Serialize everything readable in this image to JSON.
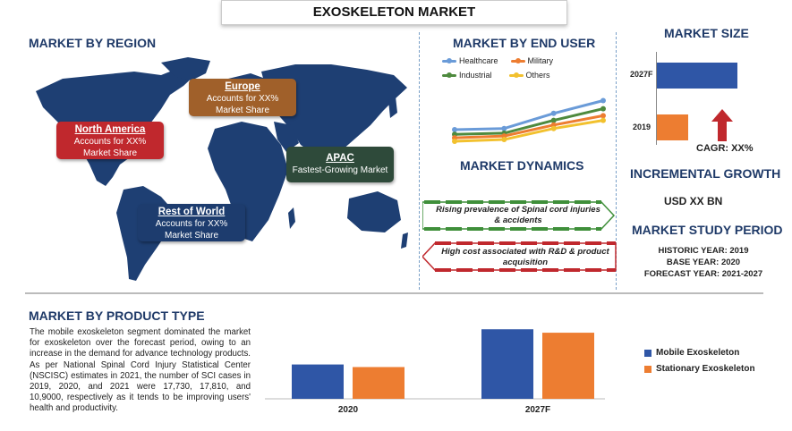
{
  "title": "EXOSKELETON MARKET",
  "region": {
    "heading": "MARKET BY REGION",
    "callouts": [
      {
        "name": "North America",
        "line1": "Accounts for XX%",
        "line2": "Market Share",
        "color": "#c0282d"
      },
      {
        "name": "Europe",
        "line1": "Accounts for XX%",
        "line2": "Market Share",
        "color": "#a0602a"
      },
      {
        "name": "APAC",
        "line1": "Fastest-Growing Market",
        "line2": "",
        "color": "#2e4a3a"
      },
      {
        "name": "Rest of World",
        "line1": "Accounts for XX%",
        "line2": "Market Share",
        "color": "#1d3c6e"
      }
    ]
  },
  "end_user": {
    "heading": "MARKET BY END USER",
    "legend": [
      {
        "label": "Healthcare",
        "color": "#6a9bd8"
      },
      {
        "label": "Military",
        "color": "#ed7d31"
      },
      {
        "label": "Industrial",
        "color": "#4e8a3e"
      },
      {
        "label": "Others",
        "color": "#f2c12e"
      }
    ]
  },
  "dynamics": {
    "heading": "MARKET DYNAMICS",
    "driver": "Rising prevalence of Spinal cord injuries & accidents",
    "restraint": "High cost associated with  R&D & product acquisition",
    "driver_color": "#3f8f3a",
    "restraint_color": "#c0282d"
  },
  "size": {
    "heading": "MARKET SIZE",
    "year_top": "2027F",
    "year_bottom": "2019",
    "cagr": "CAGR: XX%"
  },
  "incremental": {
    "heading": "INCREMENTAL GROWTH",
    "value": "USD XX BN"
  },
  "study": {
    "heading": "MARKET STUDY PERIOD",
    "historic": "HISTORIC YEAR: 2019",
    "base": "BASE YEAR: 2020",
    "forecast": "FORECAST YEAR: 2021-2027"
  },
  "product": {
    "heading": "MARKET BY PRODUCT TYPE",
    "paragraph": "The mobile exoskeleton segment dominated the market for exoskeleton over the forecast period, owing to an increase in the demand for advance technology products. As per National Spinal Cord Injury Statistical Center (NSCISC) estimates in 2021, the number of SCI cases in 2019, 2020, and 2021 were 17,730, 17,810, and 10,9000, respectively as it tends to be improving users' health and productivity."
  },
  "chart_data": [
    {
      "type": "line",
      "title": "MARKET BY END USER",
      "x": [
        "1",
        "2",
        "3",
        "4"
      ],
      "series": [
        {
          "name": "Healthcare",
          "values": [
            2.0,
            2.2,
            4.8,
            7.0
          ],
          "color": "#6a9bd8"
        },
        {
          "name": "Industrial",
          "values": [
            1.2,
            1.4,
            3.6,
            5.6
          ],
          "color": "#4e8a3e"
        },
        {
          "name": "Military",
          "values": [
            0.6,
            0.9,
            2.8,
            4.4
          ],
          "color": "#ed7d31"
        },
        {
          "name": "Others",
          "values": [
            0.0,
            0.3,
            2.2,
            3.6
          ],
          "color": "#f2c12e"
        }
      ],
      "ylim": [
        0,
        8
      ],
      "legend": "top"
    },
    {
      "type": "bar",
      "title": "MARKET SIZE",
      "orientation": "horizontal",
      "categories": [
        "2027F",
        "2019"
      ],
      "values": [
        100,
        39
      ],
      "colors": [
        "#2f56a6",
        "#ed7d31"
      ]
    },
    {
      "type": "bar",
      "title": "MARKET BY PRODUCT TYPE",
      "categories": [
        "2020",
        "2027F"
      ],
      "series": [
        {
          "name": "Mobile Exoskeleton",
          "values": [
            40,
            81
          ],
          "color": "#2f56a6"
        },
        {
          "name": "Stationary Exoskeleton",
          "values": [
            37,
            77
          ],
          "color": "#ed7d31"
        }
      ],
      "ylim": [
        0,
        100
      ],
      "legend": "right"
    }
  ]
}
